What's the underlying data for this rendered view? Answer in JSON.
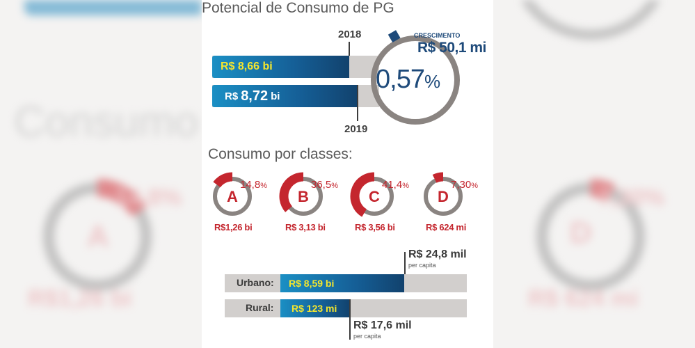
{
  "background": {
    "left_word": "Consumo p",
    "left_class_letter": "A",
    "left_class_value": "R$1,26 bi",
    "left_class_pct": "14,8%",
    "right_class_letter": "D",
    "right_class_value": "R$ 624 mi",
    "right_class_pct": "7,30%"
  },
  "potencial": {
    "title": "Potencial de Consumo de PG",
    "year_2018": "2018",
    "year_2019": "2019",
    "value_2018": "R$ 8,66 bi",
    "value_2019_prefix": "R$",
    "value_2019_number": "8,72",
    "value_2019_suffix": "bi",
    "growth_title": "CRESCIMENTO",
    "growth_value": "R$ 50,1 mi",
    "growth_pct_number": "0,57",
    "growth_pct_sign": "%"
  },
  "classes": {
    "title": "Consumo por classes:",
    "items": [
      {
        "letter": "A",
        "pct_number": "14,8",
        "pct_sign": "%",
        "value": "R$1,26 bi",
        "fraction": 0.148
      },
      {
        "letter": "B",
        "pct_number": "36,5",
        "pct_sign": "%",
        "value": "R$ 3,13 bi",
        "fraction": 0.365
      },
      {
        "letter": "C",
        "pct_number": "41,4",
        "pct_sign": "%",
        "value": "R$ 3,56 bi",
        "fraction": 0.414
      },
      {
        "letter": "D",
        "pct_number": "7,30",
        "pct_sign": "%",
        "value": "R$ 624 mi",
        "fraction": 0.073
      }
    ]
  },
  "area": {
    "urbano_label": "Urbano:",
    "urbano_value": "R$ 8,59 bi",
    "rural_label": "Rural:",
    "rural_value": "R$ 123 mi",
    "urbano_percapita": "R$ 24,8 mil",
    "rural_percapita": "R$ 17,6 mil",
    "percapita_label": "per capita"
  },
  "colors": {
    "blue_dark": "#1e4a7a",
    "red": "#c4262e",
    "gray_ring": "#8a8481",
    "yellow": "#f5e62d"
  },
  "chart_data": [
    {
      "type": "bar",
      "title": "Potencial de Consumo de PG",
      "categories": [
        "2018",
        "2019"
      ],
      "values": [
        8.66,
        8.72
      ],
      "unit": "R$ bi"
    },
    {
      "type": "pie",
      "title": "Consumo por classes:",
      "categories": [
        "A",
        "B",
        "C",
        "D"
      ],
      "values": [
        14.8,
        36.5,
        41.4,
        7.3
      ],
      "amounts": [
        "R$1,26 bi",
        "R$ 3,13 bi",
        "R$ 3,56 bi",
        "R$ 624 mi"
      ]
    },
    {
      "type": "bar",
      "categories": [
        "Urbano:",
        "Rural:"
      ],
      "values": [
        "R$ 8,59 bi",
        "R$ 123 mi"
      ],
      "per_capita": [
        "R$ 24,8 mil",
        "R$ 17,6 mil"
      ]
    }
  ]
}
